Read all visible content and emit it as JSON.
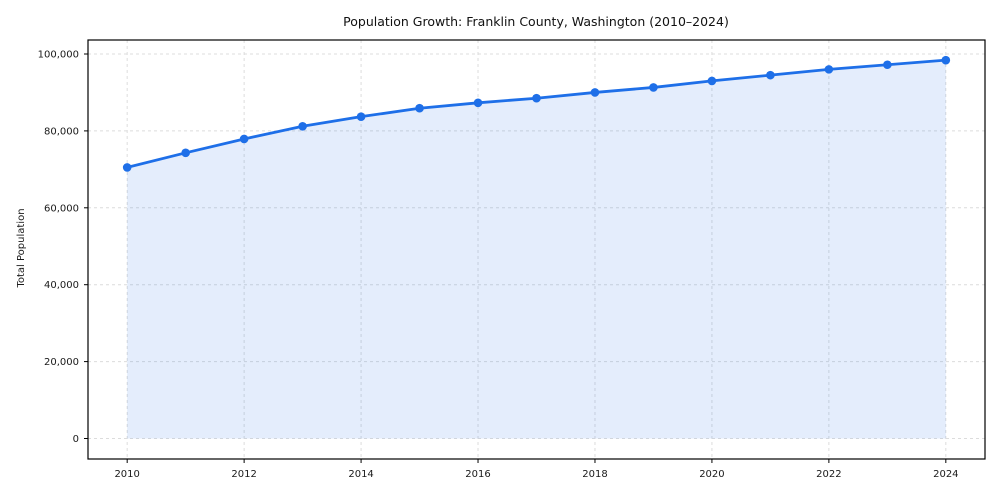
{
  "figure": {
    "title": "Population Growth: Franklin County, Washington (2010–2024)",
    "y_axis_label": "Total Population"
  },
  "chart_data": {
    "type": "line",
    "title": "Population Growth: Franklin County, Washington (2010–2024)",
    "xlabel": "",
    "ylabel": "Total Population",
    "x": [
      2010,
      2011,
      2012,
      2013,
      2014,
      2015,
      2016,
      2017,
      2018,
      2019,
      2020,
      2021,
      2022,
      2023,
      2024
    ],
    "series": [
      {
        "name": "Total Population",
        "values": [
          70500,
          74300,
          77900,
          81200,
          83700,
          85900,
          87300,
          88500,
          90000,
          91300,
          93000,
          94500,
          96000,
          97200,
          98400
        ]
      }
    ],
    "x_ticks": [
      2010,
      2012,
      2014,
      2016,
      2018,
      2020,
      2022,
      2024
    ],
    "x_tick_labels": [
      "2010",
      "2012",
      "2014",
      "2016",
      "2018",
      "2020",
      "2022",
      "2024"
    ],
    "y_ticks": [
      0,
      20000,
      40000,
      60000,
      80000,
      100000
    ],
    "y_tick_labels": [
      "0",
      "20,000",
      "40,000",
      "60,000",
      "80,000",
      "100,000"
    ],
    "xlim": [
      2009.33,
      2024.67
    ],
    "ylim": [
      -5330,
      103640
    ],
    "grid": true,
    "grid_style": "dashed",
    "legend": false,
    "area_baseline": 0,
    "marker": "circle",
    "colors": {
      "line": "#1e6fe8",
      "marker": "#1e6fe8",
      "area_fill": "rgba(30, 111, 232, 0.12)",
      "grid": "#dcdcdc",
      "frame": "#000000",
      "text": "#1a1a1a"
    }
  }
}
